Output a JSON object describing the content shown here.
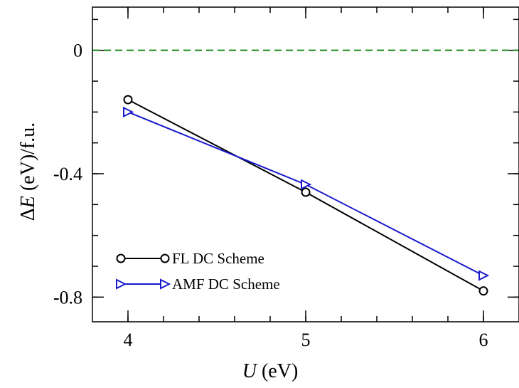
{
  "chart_data": {
    "type": "line",
    "title": "",
    "xlabel_var": "U",
    "xlabel_unit": " (eV)",
    "ylabel_prefix": "Δ",
    "ylabel_var": "E",
    "ylabel_unit": " (eV)/f.u.",
    "xlim": [
      3.8,
      6.2
    ],
    "ylim": [
      -0.88,
      0.14
    ],
    "x_ticks": [
      4,
      5,
      6
    ],
    "x_tick_labels": [
      "4",
      "5",
      "6"
    ],
    "y_ticks": [
      0,
      -0.4,
      -0.8
    ],
    "y_tick_labels": [
      "0",
      "-0.4",
      "-0.8"
    ],
    "x_minor_step": 0.2,
    "y_minor_step": 0.1,
    "grid": false,
    "legend_position": "bottom-left",
    "reference_line": {
      "y": 0,
      "color": "#1a8a1a",
      "style": "dashed"
    },
    "series": [
      {
        "name": "FL DC Scheme",
        "x": [
          4,
          5,
          6
        ],
        "values": [
          -0.16,
          -0.46,
          -0.78
        ],
        "color": "#000000",
        "marker": "circle"
      },
      {
        "name": "AMF DC Scheme",
        "x": [
          4,
          5,
          6
        ],
        "values": [
          -0.2,
          -0.435,
          -0.73
        ],
        "color": "#1a1acc",
        "marker": "triangle-right"
      }
    ]
  }
}
